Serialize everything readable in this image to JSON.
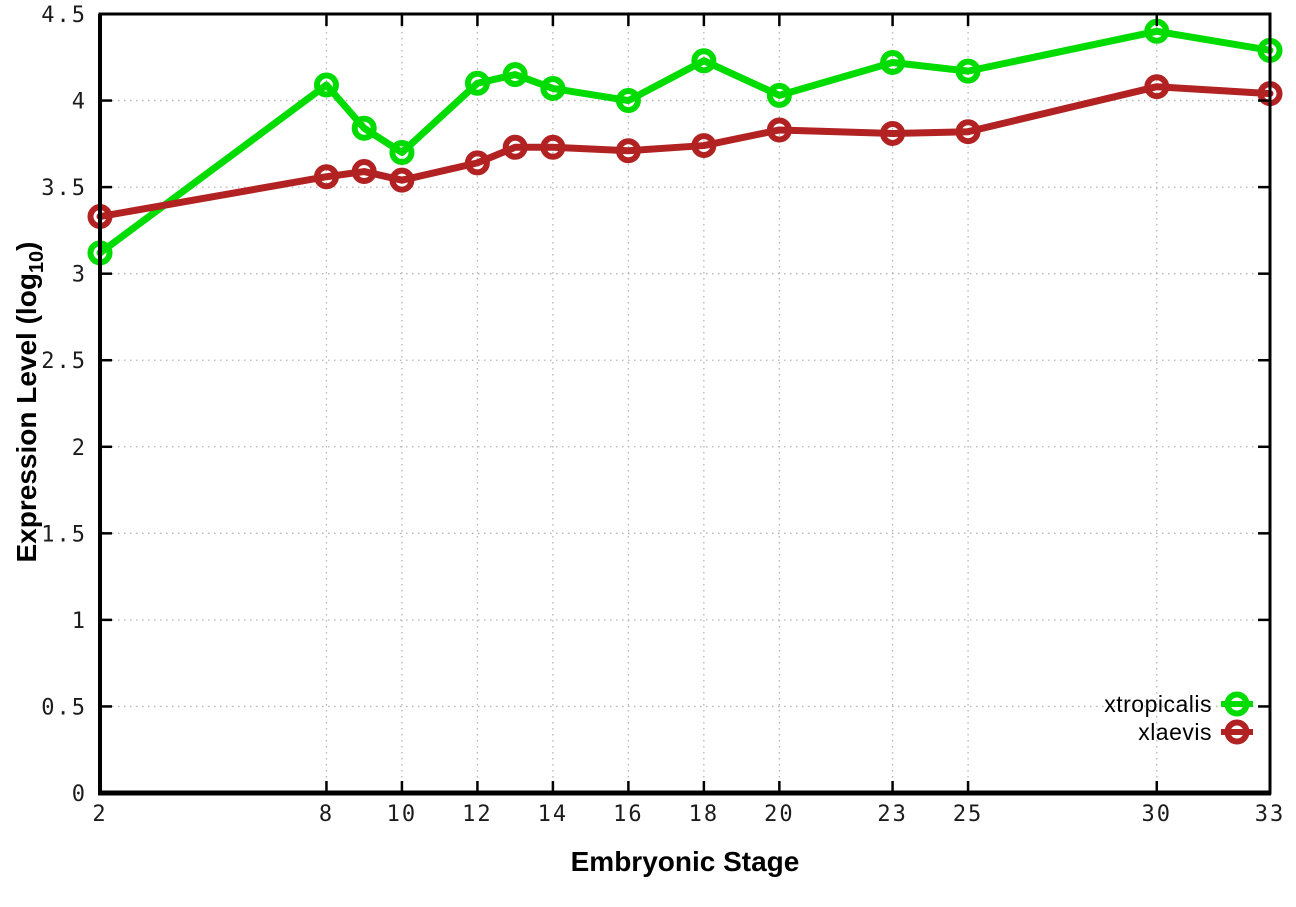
{
  "figure": {
    "background": "#ffffff",
    "border_color": "#000000",
    "grid_color": "#b5b5b5"
  },
  "chart_data": {
    "type": "line",
    "title": "",
    "xlabel": "Embryonic Stage",
    "ylabel": {
      "prefix": "Expression Level (log",
      "sub": "10",
      "suffix": ")"
    },
    "xlim": [
      2,
      33
    ],
    "ylim": [
      0,
      4.5
    ],
    "grid": true,
    "legend_position": "inside-bottom-right",
    "xticks": [
      {
        "value": 2,
        "label": "2"
      },
      {
        "value": 8,
        "label": "8"
      },
      {
        "value": 10,
        "label": "10"
      },
      {
        "value": 12,
        "label": "12"
      },
      {
        "value": 14,
        "label": "14"
      },
      {
        "value": 16,
        "label": "16"
      },
      {
        "value": 18,
        "label": "18"
      },
      {
        "value": 20,
        "label": "20"
      },
      {
        "value": 23,
        "label": "23"
      },
      {
        "value": 25,
        "label": "25"
      },
      {
        "value": 30,
        "label": "30"
      },
      {
        "value": 33,
        "label": "33"
      }
    ],
    "yticks": [
      {
        "value": 0,
        "label": "0"
      },
      {
        "value": 0.5,
        "label": "0.5"
      },
      {
        "value": 1,
        "label": "1"
      },
      {
        "value": 1.5,
        "label": "1.5"
      },
      {
        "value": 2,
        "label": "2"
      },
      {
        "value": 2.5,
        "label": "2.5"
      },
      {
        "value": 3,
        "label": "3"
      },
      {
        "value": 3.5,
        "label": "3.5"
      },
      {
        "value": 4,
        "label": "4"
      },
      {
        "value": 4.5,
        "label": "4.5"
      }
    ],
    "x": [
      2,
      8,
      9,
      10,
      12,
      13,
      14,
      16,
      18,
      20,
      23,
      25,
      30,
      33
    ],
    "series": [
      {
        "name": "xtropicalis",
        "color": "#00dc00",
        "marker": "open-circle",
        "values": [
          3.12,
          4.09,
          3.84,
          3.7,
          4.1,
          4.15,
          4.07,
          4.0,
          4.23,
          4.03,
          4.22,
          4.17,
          4.4,
          4.29
        ]
      },
      {
        "name": "xlaevis",
        "color": "#b22222",
        "marker": "open-circle",
        "values": [
          3.33,
          3.56,
          3.59,
          3.54,
          3.64,
          3.73,
          3.73,
          3.71,
          3.74,
          3.83,
          3.81,
          3.82,
          4.08,
          4.04
        ]
      }
    ]
  }
}
